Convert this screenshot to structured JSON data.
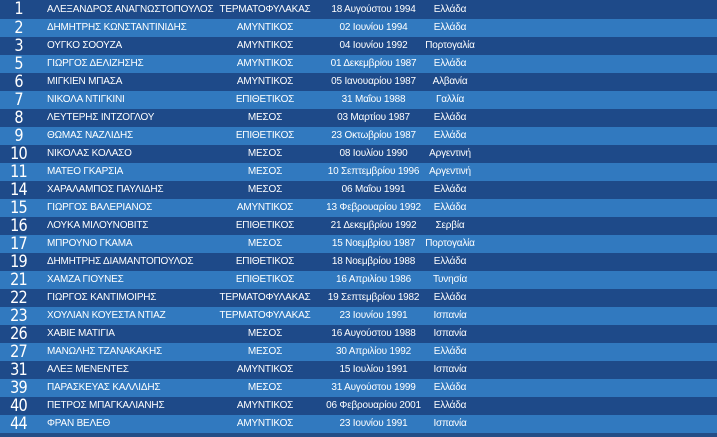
{
  "roster": {
    "players": [
      {
        "number": "1",
        "name": "ΑΛΕΞΑΝΔΡΟΣ ΑΝΑΓΝΩΣΤΟΠΟΥΛΟΣ",
        "position": "ΤΕΡΜΑΤΟΦΥΛΑΚΑΣ",
        "birth_date": "18 Αυγούστου 1994",
        "nationality": "Ελλάδα"
      },
      {
        "number": "2",
        "name": "ΔΗΜΗΤΡΗΣ ΚΩΝΣΤΑΝΤΙΝΙΔΗΣ",
        "position": "ΑΜΥΝΤΙΚΟΣ",
        "birth_date": "02 Ιουνίου 1994",
        "nationality": "Ελλάδα"
      },
      {
        "number": "3",
        "name": "ΟΥΓΚΟ ΣΟΟΥΖΑ",
        "position": "ΑΜΥΝΤΙΚΟΣ",
        "birth_date": "04 Ιουνίου 1992",
        "nationality": "Πορτογαλία"
      },
      {
        "number": "5",
        "name": "ΓΙΩΡΓΟΣ ΔΕΛΙΖΗΣΗΣ",
        "position": "ΑΜΥΝΤΙΚΟΣ",
        "birth_date": "01 Δεκεμβρίου 1987",
        "nationality": "Ελλάδα"
      },
      {
        "number": "6",
        "name": "ΜΙΓΚΙΕΝ ΜΠΑΣΑ",
        "position": "ΑΜΥΝΤΙΚΟΣ",
        "birth_date": "05 Ιανουαρίου 1987",
        "nationality": "Αλβανία"
      },
      {
        "number": "7",
        "name": "ΝΙΚΟΛΑ ΝΤΙΓΚΙΝΙ",
        "position": "ΕΠΙΘΕΤΙΚΟΣ",
        "birth_date": "31 Μαΐου 1988",
        "nationality": "Γαλλία"
      },
      {
        "number": "8",
        "name": "ΛΕΥΤΕΡΗΣ ΙΝΤΖΟΓΛΟΥ",
        "position": "ΜΕΣΟΣ",
        "birth_date": "03 Μαρτίου 1987",
        "nationality": "Ελλάδα"
      },
      {
        "number": "9",
        "name": "ΘΩΜΑΣ ΝΑΖΛΙΔΗΣ",
        "position": "ΕΠΙΘΕΤΙΚΟΣ",
        "birth_date": "23 Οκτωβρίου 1987",
        "nationality": "Ελλάδα"
      },
      {
        "number": "10",
        "name": "ΝΙΚΟΛΑΣ ΚΟΛΑΣΟ",
        "position": "ΜΕΣΟΣ",
        "birth_date": "08 Ιουλίου 1990",
        "nationality": "Αργεντινή"
      },
      {
        "number": "11",
        "name": "ΜΑΤΕΟ ΓΚΑΡΣΙΑ",
        "position": "ΜΕΣΟΣ",
        "birth_date": "10 Σεπτεμβρίου 1996",
        "nationality": "Αργεντινή"
      },
      {
        "number": "14",
        "name": "ΧΑΡΑΛΑΜΠΟΣ ΠΑΥΛΙΔΗΣ",
        "position": "ΜΕΣΟΣ",
        "birth_date": "06 Μαΐου 1991",
        "nationality": "Ελλάδα"
      },
      {
        "number": "15",
        "name": "ΓΙΩΡΓΟΣ ΒΑΛΕΡΙΑΝΟΣ",
        "position": "ΑΜΥΝΤΙΚΟΣ",
        "birth_date": "13 Φεβρουαρίου 1992",
        "nationality": "Ελλάδα"
      },
      {
        "number": "16",
        "name": "ΛΟΥΚΑ ΜΙΛΟΥΝΟΒΙΤΣ",
        "position": "ΕΠΙΘΕΤΙΚΟΣ",
        "birth_date": "21 Δεκεμβρίου 1992",
        "nationality": "Σερβία"
      },
      {
        "number": "17",
        "name": "ΜΠΡΟΥΝΟ ΓΚΑΜΑ",
        "position": "ΜΕΣΟΣ",
        "birth_date": "15 Νοεμβρίου 1987",
        "nationality": "Πορτογαλία"
      },
      {
        "number": "19",
        "name": "ΔΗΜΗΤΡΗΣ ΔΙΑΜΑΝΤΟΠΟΥΛΟΣ",
        "position": "ΕΠΙΘΕΤΙΚΟΣ",
        "birth_date": "18 Νοεμβρίου 1988",
        "nationality": "Ελλάδα"
      },
      {
        "number": "21",
        "name": "ΧΑΜΖΑ ΓΙΟΥΝΕΣ",
        "position": "ΕΠΙΘΕΤΙΚΟΣ",
        "birth_date": "16 Απριλίου 1986",
        "nationality": "Τυνησία"
      },
      {
        "number": "22",
        "name": "ΓΙΩΡΓΟΣ ΚΑΝΤΙΜΟΙΡΗΣ",
        "position": "ΤΕΡΜΑΤΟΦΥΛΑΚΑΣ",
        "birth_date": "19 Σεπτεμβρίου 1982",
        "nationality": "Ελλάδα"
      },
      {
        "number": "23",
        "name": "ΧΟΥΛΙΑΝ ΚΟΥΕΣΤΑ ΝΤΙΑΖ",
        "position": "ΤΕΡΜΑΤΟΦΥΛΑΚΑΣ",
        "birth_date": "23 Ιουνίου 1991",
        "nationality": "Ισπανία"
      },
      {
        "number": "26",
        "name": "ΧΑΒΙΕ ΜΑΤΙΓΙΑ",
        "position": "ΜΕΣΟΣ",
        "birth_date": "16 Αυγούστου 1988",
        "nationality": "Ισπανία"
      },
      {
        "number": "27",
        "name": "ΜΑΝΩΛΗΣ ΤΖΑΝΑΚΑΚΗΣ",
        "position": "ΜΕΣΟΣ",
        "birth_date": "30 Απριλίου 1992",
        "nationality": "Ελλάδα"
      },
      {
        "number": "31",
        "name": "ΑΛΕΞ ΜΕΝΕΝΤΕΣ",
        "position": "ΑΜΥΝΤΙΚΟΣ",
        "birth_date": "15 Ιουλίου 1991",
        "nationality": "Ισπανία"
      },
      {
        "number": "39",
        "name": "ΠΑΡΑΣΚΕΥΑΣ ΚΑΛΛΙΔΗΣ",
        "position": "ΜΕΣΟΣ",
        "birth_date": "31 Αυγούστου 1999",
        "nationality": "Ελλάδα"
      },
      {
        "number": "40",
        "name": "ΠΕΤΡΟΣ ΜΠΑΓΚΑΛΙΑΝΗΣ",
        "position": "ΑΜΥΝΤΙΚΟΣ",
        "birth_date": "06 Φεβρουαρίου 2001",
        "nationality": "Ελλάδα"
      },
      {
        "number": "44",
        "name": "ΦΡΑΝ ΒΕΛΕΘ",
        "position": "ΑΜΥΝΤΙΚΟΣ",
        "birth_date": "23 Ιουνίου 1991",
        "nationality": "Ισπανία"
      }
    ]
  },
  "colors": {
    "row_dark": "#1e4a89",
    "row_light": "#3179bf",
    "text": "#ffffff"
  }
}
